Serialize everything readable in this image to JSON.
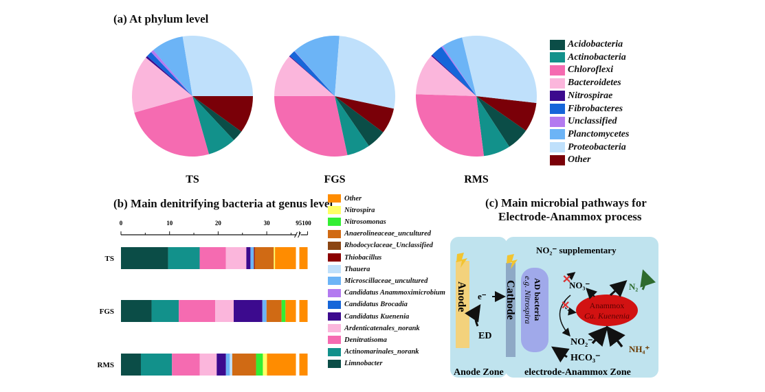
{
  "panel_a": {
    "title": "(a) At phylum level"
  },
  "panel_b": {
    "title": "(b) Main denitrifying bacteria at genus level"
  },
  "panel_c": {
    "title_line1": "(c)  Main microbial pathways for",
    "title_line2": "Electrode-Anammox process",
    "labels": {
      "no2_supp": "NO₂⁻ supplementary",
      "anode": "Anode",
      "cathode": "Cathode",
      "ad_bacteria": "AD bacteria",
      "nitrospira": "e.g. Nitrospira",
      "electron": "e⁻",
      "ed": "ED",
      "no3": "NO₃⁻",
      "n2": "N₂",
      "anammox": "Anammox",
      "kuenenia": "Ca. Kuenenia",
      "no2": "NO₂⁻",
      "hco3": "HCO₃⁻",
      "nh4": "NH₄⁺",
      "anode_zone": "Anode Zone",
      "ea_zone": "electrode-Anammox Zone"
    }
  },
  "chart_data": [
    {
      "type": "pie",
      "title": "(a) At phylum level",
      "unit": "percent (estimated)",
      "categories": [
        "Acidobacteria",
        "Actinobacteria",
        "Chloroflexi",
        "Bacteroidetes",
        "Nitrospirae",
        "Fibrobacteres",
        "Unclassified",
        "Planctomycetes",
        "Proteobacteria",
        "Other"
      ],
      "colors": [
        "#0b4d47",
        "#12918b",
        "#f56bb1",
        "#fbb6dc",
        "#3c0a8e",
        "#1666d9",
        "#b37af0",
        "#6cb4f6",
        "#bfe0fb",
        "#7a0008"
      ],
      "legend_placement": "right",
      "series": [
        {
          "name": "TS",
          "values": [
            3.0,
            7.6,
            25.0,
            15.4,
            0.5,
            1.5,
            0.8,
            8.6,
            27.6,
            10.0
          ]
        },
        {
          "name": "FGS",
          "values": [
            5.2,
            6.2,
            28.4,
            11.4,
            0.2,
            1.7,
            0.1,
            12.8,
            27.1,
            6.9
          ]
        },
        {
          "name": "RMS",
          "values": [
            6.1,
            7.2,
            27.5,
            11.1,
            0.3,
            3.3,
            0.4,
            5.6,
            30.6,
            7.9
          ]
        }
      ]
    },
    {
      "type": "bar",
      "orientation": "horizontal-stacked",
      "title": "(b) Main denitrifying bacteria at genus level",
      "xlabel": "",
      "ylabel": "",
      "xlim": [
        0,
        100
      ],
      "axis_break": [
        36,
        95
      ],
      "xticks": [
        "0",
        "10",
        "20",
        "30",
        "95100"
      ],
      "categories": [
        "TS",
        "FGS",
        "RMS"
      ],
      "legend_placement": "right",
      "series": [
        {
          "name": "Limnobacter",
          "color": "#0b4d47",
          "values": [
            9.7,
            6.3,
            4.1
          ]
        },
        {
          "name": "Actinomarinales_norank",
          "color": "#12918b",
          "values": [
            6.5,
            5.6,
            6.4
          ]
        },
        {
          "name": "Denitratisoma",
          "color": "#f56bb1",
          "values": [
            5.4,
            7.5,
            5.7
          ]
        },
        {
          "name": "Ardenticatenales_norank",
          "color": "#fbb6dc",
          "values": [
            4.2,
            3.8,
            3.5
          ]
        },
        {
          "name": "Candidatus Kuenenia",
          "color": "#3c0a8e",
          "values": [
            0.85,
            5.9,
            1.9
          ]
        },
        {
          "name": "Candidatus Brocadia",
          "color": "#1666d9",
          "values": [
            0,
            0,
            0
          ]
        },
        {
          "name": "Candidatus Anammoximicrobium",
          "color": "#b37af0",
          "values": [
            0,
            0,
            0
          ]
        },
        {
          "name": "Microscillaceae_uncultured",
          "color": "#6cb4f6",
          "values": [
            0.7,
            0.85,
            0.8
          ]
        },
        {
          "name": "Thauera",
          "color": "#bfe0fb",
          "values": [
            0,
            0,
            0.5
          ]
        },
        {
          "name": "Thiobacillus",
          "color": "#8b0000",
          "values": [
            0.2,
            0,
            0
          ]
        },
        {
          "name": "Rhodocyclaceae_Unclassified",
          "color": "#8b4513",
          "values": [
            0,
            0,
            0
          ]
        },
        {
          "name": "Anaerolineaceae_uncultured",
          "color": "#d06a14",
          "values": [
            3.9,
            3.1,
            4.9
          ]
        },
        {
          "name": "Nitrosomonas",
          "color": "#33ee33",
          "values": [
            0,
            0.8,
            1.4
          ]
        },
        {
          "name": "Nitrospira",
          "color": "#ffff66",
          "values": [
            0.25,
            0,
            0.85
          ]
        },
        {
          "name": "Other",
          "color": "#ff8c00",
          "values": [
            68.3,
            66.15,
            69.95
          ]
        }
      ]
    }
  ]
}
